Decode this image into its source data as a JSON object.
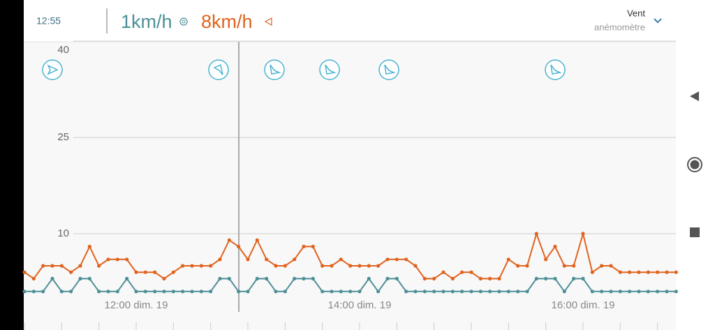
{
  "header": {
    "time": "12:55",
    "wind": "1km/h",
    "gust": "8km/h",
    "title": "Vent",
    "subtitle": "anémomètre"
  },
  "chart_data": {
    "type": "line",
    "categories": [
      null,
      null,
      null,
      null,
      null,
      null,
      null,
      null,
      null,
      null,
      null,
      null,
      "12:00 dim. 19",
      null,
      null,
      null,
      null,
      null,
      null,
      null,
      null,
      null,
      null,
      null,
      null,
      null,
      null,
      null,
      null,
      null,
      null,
      null,
      null,
      null,
      null,
      null,
      "14:00 dim. 19",
      null,
      null,
      null,
      null,
      null,
      null,
      null,
      null,
      null,
      null,
      null,
      null,
      null,
      null,
      null,
      null,
      null,
      null,
      null,
      null,
      null,
      null,
      null,
      "16:00 dim. 19",
      null,
      null,
      null,
      null,
      null,
      null,
      null,
      null,
      null,
      null
    ],
    "series": [
      {
        "name": "1km/h",
        "color": "#4d8f97",
        "values": [
          1,
          1,
          1,
          3,
          1,
          1,
          3,
          3,
          1,
          1,
          1,
          3,
          1,
          1,
          1,
          1,
          1,
          1,
          1,
          1,
          1,
          3,
          3,
          1,
          1,
          3,
          3,
          1,
          1,
          3,
          3,
          3,
          1,
          1,
          1,
          1,
          1,
          3,
          1,
          3,
          3,
          1,
          1,
          1,
          1,
          1,
          1,
          1,
          1,
          1,
          1,
          1,
          1,
          1,
          1,
          3,
          3,
          3,
          1,
          3,
          3,
          1,
          1,
          1,
          1,
          1,
          1,
          1,
          1,
          1,
          1
        ]
      },
      {
        "name": "8km/h",
        "color": "#e0631e",
        "values": [
          4,
          3,
          5,
          5,
          5,
          4,
          5,
          8,
          5,
          6,
          6,
          6,
          4,
          4,
          4,
          3,
          4,
          5,
          5,
          5,
          5,
          6,
          9,
          8,
          6,
          9,
          6,
          5,
          5,
          6,
          8,
          8,
          5,
          5,
          6,
          5,
          5,
          5,
          5,
          6,
          6,
          6,
          5,
          3,
          3,
          4,
          3,
          4,
          4,
          3,
          3,
          3,
          6,
          5,
          5,
          10,
          6,
          8,
          5,
          5,
          10,
          4,
          5,
          5,
          4,
          4,
          4,
          4,
          4,
          4,
          4
        ]
      }
    ],
    "ylim": [
      0,
      40
    ],
    "yticks": [
      10,
      25,
      40
    ],
    "grid": true
  }
}
